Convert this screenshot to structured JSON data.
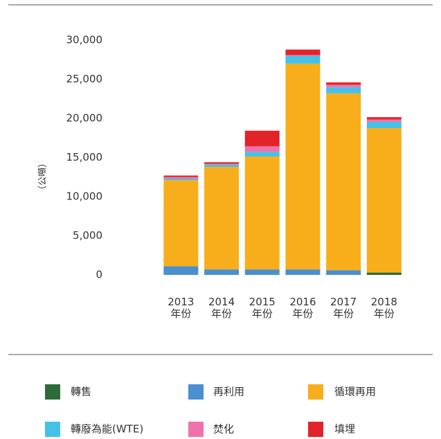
{
  "chart_data": {
    "type": "bar",
    "stacked": true,
    "y_label": "（公噸）",
    "categories": [
      "2013\n年份",
      "2014\n年份",
      "2015\n年份",
      "2016\n年份",
      "2017\n年份",
      "2018\n年份"
    ],
    "series": [
      {
        "name": "轉售",
        "color": "#2e6b3a",
        "values": [
          0,
          0,
          0,
          0,
          0,
          300
        ]
      },
      {
        "name": "再利用",
        "color": "#4a8fd0",
        "values": [
          1100,
          700,
          700,
          700,
          600,
          0
        ]
      },
      {
        "name": "循環再用",
        "color": "#f8ae1a",
        "values": [
          11000,
          13100,
          14430,
          26300,
          22600,
          18460
        ]
      },
      {
        "name": "轉廢為能(WTE)",
        "color": "#44c1e8",
        "values": [
          200,
          300,
          600,
          1000,
          800,
          800
        ]
      },
      {
        "name": "焚化",
        "color": "#ef72ad",
        "values": [
          200,
          100,
          700,
          100,
          300,
          300
        ]
      },
      {
        "name": "填埋",
        "color": "#e2242a",
        "values": [
          200,
          200,
          2000,
          700,
          300,
          300
        ]
      }
    ],
    "ylim": [
      0,
      30000
    ],
    "yticks": [
      0,
      {
        "value": 5000,
        "label": "5,000"
      },
      {
        "value": 10000,
        "label": "10,000"
      },
      {
        "value": 15000,
        "label": "15,000"
      },
      {
        "value": 20000,
        "label": "20,000"
      },
      {
        "value": 25000,
        "label": "25,000"
      },
      {
        "value": 30000,
        "label": "30,000"
      }
    ],
    "grid": false
  }
}
